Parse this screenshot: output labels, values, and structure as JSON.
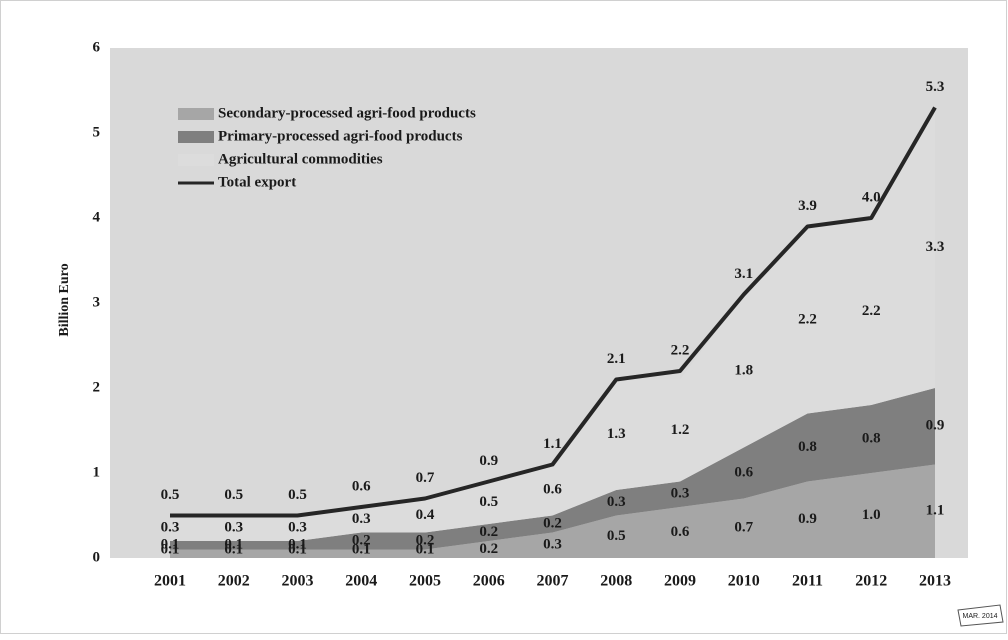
{
  "chart_data": {
    "type": "area",
    "stacked": true,
    "y_label": "Billion Euro",
    "categories": [
      "2001",
      "2002",
      "2003",
      "2004",
      "2005",
      "2006",
      "2007",
      "2008",
      "2009",
      "2010",
      "2011",
      "2012",
      "2013"
    ],
    "series": [
      {
        "name": "Secondary-processed agri-food products",
        "color": "#a6a6a6",
        "values": [
          0.1,
          0.1,
          0.1,
          0.1,
          0.1,
          0.2,
          0.3,
          0.5,
          0.6,
          0.7,
          0.9,
          1.0,
          1.1
        ],
        "value_labels": [
          "0.1",
          "0.1",
          "0.1",
          "0.1",
          "0.1",
          "0.2",
          "0.3",
          "0.5",
          "0.6",
          "0.7",
          "0.9",
          "1.0",
          "1.1"
        ]
      },
      {
        "name": "Primary-processed agri-food  products",
        "color": "#7f7f7f",
        "values": [
          0.1,
          0.1,
          0.1,
          0.2,
          0.2,
          0.2,
          0.2,
          0.3,
          0.3,
          0.6,
          0.8,
          0.8,
          0.9
        ]
      },
      {
        "name": "Agricultural commodities",
        "color": "#dcdcdc",
        "values": [
          0.3,
          0.3,
          0.3,
          0.3,
          0.4,
          0.5,
          0.6,
          1.3,
          1.2,
          1.8,
          2.2,
          2.2,
          3.3
        ]
      },
      {
        "name": "Total export",
        "color": "#262626",
        "type": "line",
        "values": [
          0.5,
          0.5,
          0.5,
          0.6,
          0.7,
          0.9,
          1.1,
          2.1,
          2.2,
          3.1,
          3.9,
          4.0,
          5.3
        ],
        "value_labels": [
          "0.5",
          "0.5",
          "0.5",
          "0.6",
          "0.7",
          "0.9",
          "1.1",
          "2.1",
          "2.2",
          "3.1",
          "3.9",
          "4.0",
          "5.3"
        ]
      }
    ],
    "ylim": [
      0,
      6
    ],
    "yticks": [
      0,
      1,
      2,
      3,
      4,
      5,
      6
    ],
    "grid": false,
    "plot_background": "#d9d9d9",
    "annotations": [
      "MAR. 2014"
    ]
  }
}
